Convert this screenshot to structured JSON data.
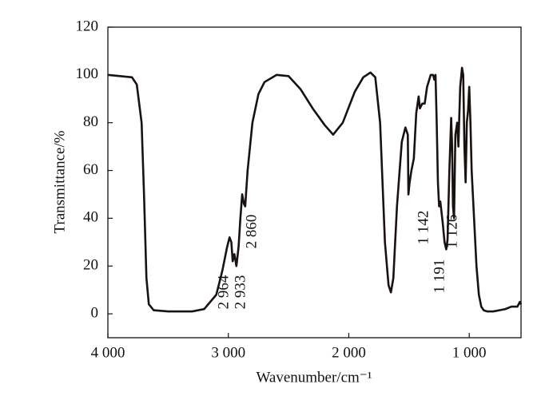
{
  "chart_data": {
    "type": "line",
    "x_label": "Wavenumber/cm⁻¹",
    "y_label": "Transmittance/%",
    "color": "#1a1111",
    "xlim": [
      4000,
      570
    ],
    "ylim": [
      -10,
      120
    ],
    "xticks": [
      {
        "value": 4000,
        "label": "4 000"
      },
      {
        "value": 3000,
        "label": "3 000"
      },
      {
        "value": 2000,
        "label": "2 000"
      },
      {
        "value": 1000,
        "label": "1 000"
      }
    ],
    "yticks": [
      0,
      20,
      40,
      60,
      80,
      100,
      120
    ],
    "annotations": [
      "2 964",
      "2 933",
      "2 860",
      "1 142",
      "1 191",
      "1 126"
    ],
    "x": [
      4000,
      3900,
      3800,
      3760,
      3720,
      3700,
      3680,
      3660,
      3620,
      3500,
      3300,
      3200,
      3100,
      3050,
      3010,
      2990,
      2975,
      2964,
      2950,
      2933,
      2915,
      2900,
      2885,
      2870,
      2860,
      2840,
      2800,
      2750,
      2700,
      2600,
      2500,
      2400,
      2300,
      2200,
      2130,
      2050,
      1950,
      1880,
      1820,
      1780,
      1740,
      1720,
      1700,
      1670,
      1650,
      1630,
      1600,
      1560,
      1530,
      1510,
      1505,
      1495,
      1480,
      1460,
      1440,
      1420,
      1410,
      1390,
      1370,
      1350,
      1320,
      1300,
      1290,
      1280,
      1270,
      1260,
      1250,
      1240,
      1220,
      1205,
      1191,
      1180,
      1165,
      1150,
      1142,
      1135,
      1126,
      1115,
      1100,
      1090,
      1075,
      1060,
      1050,
      1040,
      1030,
      1020,
      1010,
      1000,
      990,
      980,
      960,
      940,
      920,
      900,
      880,
      850,
      800,
      750,
      700,
      650,
      600,
      580,
      570
    ],
    "values": [
      100,
      99.5,
      99,
      96,
      80,
      50,
      15,
      4,
      1.5,
      1,
      1,
      2,
      8,
      18,
      28,
      32,
      30,
      22,
      25,
      20,
      28,
      40,
      50,
      46,
      45,
      60,
      80,
      92,
      97,
      100,
      99.5,
      94,
      86,
      79,
      75,
      80,
      93,
      99,
      101,
      99,
      80,
      55,
      30,
      12,
      9,
      15,
      45,
      72,
      78,
      75,
      50,
      55,
      60,
      65,
      84,
      91,
      86,
      88,
      88,
      95,
      100,
      100,
      98,
      100,
      80,
      55,
      45,
      47,
      38,
      30,
      27,
      31,
      60,
      82,
      70,
      45,
      40,
      75,
      80,
      70,
      95,
      103,
      100,
      70,
      55,
      80,
      85,
      95,
      80,
      60,
      40,
      20,
      8,
      3,
      1.5,
      1,
      1,
      1.5,
      2,
      3,
      3,
      5,
      4
    ]
  }
}
